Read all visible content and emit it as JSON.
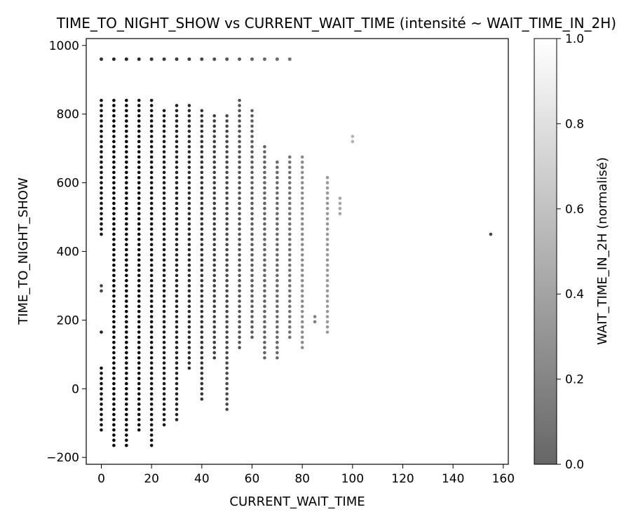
{
  "chart_data": {
    "type": "scatter",
    "title": "TIME_TO_NIGHT_SHOW vs CURRENT_WAIT_TIME (intensité ~ WAIT_TIME_IN_2H)",
    "xlabel": "CURRENT_WAIT_TIME",
    "ylabel": "TIME_TO_NIGHT_SHOW",
    "xlim": [
      -6,
      162
    ],
    "ylim": [
      -220,
      1020
    ],
    "xticks": [
      0,
      20,
      40,
      60,
      80,
      100,
      120,
      140,
      160
    ],
    "yticks": [
      -200,
      0,
      200,
      400,
      600,
      800,
      1000
    ],
    "tick_labels": {
      "x": [
        "0",
        "20",
        "40",
        "60",
        "80",
        "100",
        "120",
        "140",
        "160"
      ],
      "y": [
        "−200",
        "0",
        "200",
        "400",
        "600",
        "800",
        "1000"
      ]
    },
    "colorbar": {
      "label": "WAIT_TIME_IN_2H (normalisé)",
      "range": [
        0,
        1
      ],
      "ticks": [
        0.0,
        0.2,
        0.4,
        0.6,
        0.8,
        1.0
      ],
      "tick_labels": [
        "0.0",
        "0.2",
        "0.4",
        "0.6",
        "0.8",
        "1.0"
      ],
      "colormap": "gray",
      "alpha": 0.6
    },
    "grid": false,
    "marker_color_low": "#000000",
    "marker_color_high": "#ffffff",
    "series_columns": [
      {
        "x": 0,
        "y_min": -125,
        "y_max": 60,
        "top": 960,
        "intensity": 0.05
      },
      {
        "x": 0,
        "y_min": 165,
        "y_max": 165,
        "top": null,
        "intensity": 0.1
      },
      {
        "x": 0,
        "y_min": 280,
        "y_max": 300,
        "top": null,
        "intensity": 0.2
      },
      {
        "x": 0,
        "y_min": 450,
        "y_max": 840,
        "top": null,
        "intensity": 0.05
      },
      {
        "x": 5,
        "y_min": -165,
        "y_max": 840,
        "top": 960,
        "intensity": 0.0
      },
      {
        "x": 10,
        "y_min": -165,
        "y_max": 840,
        "top": 960,
        "intensity": 0.0
      },
      {
        "x": 15,
        "y_min": -125,
        "y_max": 840,
        "top": 960,
        "intensity": 0.02
      },
      {
        "x": 20,
        "y_min": -165,
        "y_max": 840,
        "top": 960,
        "intensity": 0.05
      },
      {
        "x": 25,
        "y_min": -105,
        "y_max": 810,
        "top": 960,
        "intensity": 0.08
      },
      {
        "x": 30,
        "y_min": -90,
        "y_max": 825,
        "top": 960,
        "intensity": 0.1
      },
      {
        "x": 35,
        "y_min": 55,
        "y_max": 825,
        "top": 960,
        "intensity": 0.12
      },
      {
        "x": 40,
        "y_min": -30,
        "y_max": 810,
        "top": 960,
        "intensity": 0.15
      },
      {
        "x": 45,
        "y_min": 90,
        "y_max": 805,
        "top": 960,
        "intensity": 0.18
      },
      {
        "x": 50,
        "y_min": -60,
        "y_max": 795,
        "top": 960,
        "intensity": 0.22
      },
      {
        "x": 55,
        "y_min": 120,
        "y_max": 840,
        "top": 960,
        "intensity": 0.25
      },
      {
        "x": 60,
        "y_min": 140,
        "y_max": 810,
        "top": 960,
        "intensity": 0.28
      },
      {
        "x": 65,
        "y_min": 90,
        "y_max": 705,
        "top": 960,
        "intensity": 0.3
      },
      {
        "x": 70,
        "y_min": 90,
        "y_max": 660,
        "top": 960,
        "intensity": 0.32
      },
      {
        "x": 75,
        "y_min": 150,
        "y_max": 675,
        "top": 960,
        "intensity": 0.35
      },
      {
        "x": 80,
        "y_min": 120,
        "y_max": 675,
        "top": null,
        "intensity": 0.45
      },
      {
        "x": 85,
        "y_min": 195,
        "y_max": 210,
        "top": null,
        "intensity": 0.4
      },
      {
        "x": 90,
        "y_min": 165,
        "y_max": 615,
        "top": null,
        "intensity": 0.5
      },
      {
        "x": 95,
        "y_min": 510,
        "y_max": 555,
        "top": null,
        "intensity": 0.55
      },
      {
        "x": 100,
        "y_min": 720,
        "y_max": 735,
        "top": null,
        "intensity": 0.6
      },
      {
        "x": 155,
        "y_min": 450,
        "y_max": 450,
        "top": null,
        "intensity": 0.2
      }
    ]
  }
}
